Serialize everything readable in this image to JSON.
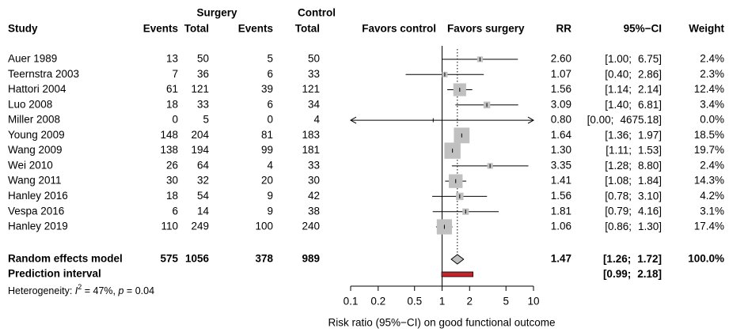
{
  "chart_data": {
    "type": "forest",
    "headers": {
      "surgery": "Surgery",
      "control": "Control",
      "study": "Study",
      "events1": "Events",
      "total1": "Total",
      "events2": "Events",
      "total2": "Total",
      "favors_control": "Favors control",
      "favors_surgery": "Favors surgery",
      "rr": "RR",
      "ci": "95%−CI",
      "weight": "Weight"
    },
    "studies": [
      {
        "name": "Auer 1989",
        "events1": 13,
        "total1": 50,
        "events2": 5,
        "total2": 50,
        "rr": 2.6,
        "rr_label": "2.60",
        "lower": 1.0,
        "lower_label": "[1.00;",
        "upper": 6.75,
        "upper_label": "6.75]",
        "weight": 2.4,
        "weight_label": "2.4%"
      },
      {
        "name": "Teernstra 2003",
        "events1": 7,
        "total1": 36,
        "events2": 6,
        "total2": 33,
        "rr": 1.07,
        "rr_label": "1.07",
        "lower": 0.4,
        "lower_label": "[0.40;",
        "upper": 2.86,
        "upper_label": "2.86]",
        "weight": 2.3,
        "weight_label": "2.3%"
      },
      {
        "name": "Hattori 2004",
        "events1": 61,
        "total1": 121,
        "events2": 39,
        "total2": 121,
        "rr": 1.56,
        "rr_label": "1.56",
        "lower": 1.14,
        "lower_label": "[1.14;",
        "upper": 2.14,
        "upper_label": "2.14]",
        "weight": 12.4,
        "weight_label": "12.4%"
      },
      {
        "name": "Luo 2008",
        "events1": 18,
        "total1": 33,
        "events2": 6,
        "total2": 34,
        "rr": 3.09,
        "rr_label": "3.09",
        "lower": 1.4,
        "lower_label": "[1.40;",
        "upper": 6.81,
        "upper_label": "6.81]",
        "weight": 3.4,
        "weight_label": "3.4%"
      },
      {
        "name": "Miller 2008",
        "events1": 0,
        "total1": 5,
        "events2": 0,
        "total2": 4,
        "rr": 0.8,
        "rr_label": "0.80",
        "lower": 0.0,
        "lower_label": "[0.00;",
        "upper": 4675.18,
        "upper_label": "4675.18]",
        "weight": 0.0,
        "weight_label": "0.0%"
      },
      {
        "name": "Young 2009",
        "events1": 148,
        "total1": 204,
        "events2": 81,
        "total2": 183,
        "rr": 1.64,
        "rr_label": "1.64",
        "lower": 1.36,
        "lower_label": "[1.36;",
        "upper": 1.97,
        "upper_label": "1.97]",
        "weight": 18.5,
        "weight_label": "18.5%"
      },
      {
        "name": "Wang 2009",
        "events1": 138,
        "total1": 194,
        "events2": 99,
        "total2": 181,
        "rr": 1.3,
        "rr_label": "1.30",
        "lower": 1.11,
        "lower_label": "[1.11;",
        "upper": 1.53,
        "upper_label": "1.53]",
        "weight": 19.7,
        "weight_label": "19.7%"
      },
      {
        "name": "Wei 2010",
        "events1": 26,
        "total1": 64,
        "events2": 4,
        "total2": 33,
        "rr": 3.35,
        "rr_label": "3.35",
        "lower": 1.28,
        "lower_label": "[1.28;",
        "upper": 8.8,
        "upper_label": "8.80]",
        "weight": 2.4,
        "weight_label": "2.4%"
      },
      {
        "name": "Wang 2011",
        "events1": 30,
        "total1": 32,
        "events2": 20,
        "total2": 30,
        "rr": 1.41,
        "rr_label": "1.41",
        "lower": 1.08,
        "lower_label": "[1.08;",
        "upper": 1.84,
        "upper_label": "1.84]",
        "weight": 14.3,
        "weight_label": "14.3%"
      },
      {
        "name": "Hanley 2016",
        "events1": 18,
        "total1": 54,
        "events2": 9,
        "total2": 42,
        "rr": 1.56,
        "rr_label": "1.56",
        "lower": 0.78,
        "lower_label": "[0.78;",
        "upper": 3.1,
        "upper_label": "3.10]",
        "weight": 4.2,
        "weight_label": "4.2%"
      },
      {
        "name": "Vespa 2016",
        "events1": 6,
        "total1": 14,
        "events2": 9,
        "total2": 38,
        "rr": 1.81,
        "rr_label": "1.81",
        "lower": 0.79,
        "lower_label": "[0.79;",
        "upper": 4.16,
        "upper_label": "4.16]",
        "weight": 3.1,
        "weight_label": "3.1%"
      },
      {
        "name": "Hanley 2019",
        "events1": 110,
        "total1": 249,
        "events2": 100,
        "total2": 240,
        "rr": 1.06,
        "rr_label": "1.06",
        "lower": 0.86,
        "lower_label": "[0.86;",
        "upper": 1.3,
        "upper_label": "1.30]",
        "weight": 17.4,
        "weight_label": "17.4%"
      }
    ],
    "summary": {
      "name": "Random effects model",
      "events1": 575,
      "total1": 1056,
      "events2": 378,
      "total2": 989,
      "rr": 1.47,
      "lower": 1.26,
      "lower_label": "[1.26;",
      "upper": 1.72,
      "upper_label": "1.72]",
      "weight": 100.0,
      "weight_label": "100.0%"
    },
    "prediction": {
      "name": "Prediction interval",
      "lower": 0.99,
      "lower_label": "[0.99;",
      "upper": 2.18,
      "upper_label": "2.18]",
      "color": "#c0272d"
    },
    "heterogeneity": {
      "prefix": "Heterogeneity: ",
      "i_symbol": "I",
      "sup": "2",
      "i2_text": " = 47%, ",
      "p_symbol": "p",
      "p_text": " = 0.04"
    },
    "xlabel": "Risk ratio (95%−CI) on good functional outcome",
    "xscale": "log",
    "xlim": [
      0.1,
      10
    ],
    "xticks": [
      0.1,
      0.2,
      0.5,
      1,
      2,
      5,
      10
    ],
    "square_color": "#c0c0c0"
  }
}
